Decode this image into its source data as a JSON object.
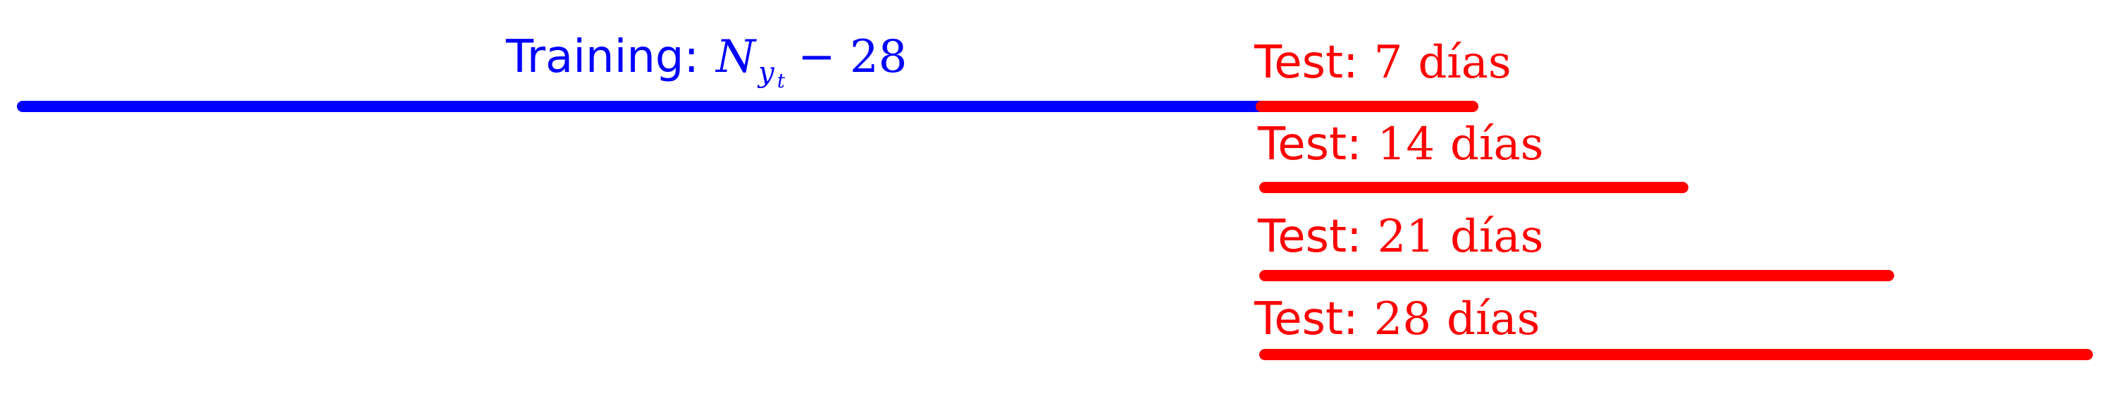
{
  "colors": {
    "training": "#0000ff",
    "test": "#ff0000",
    "background": "#ffffff"
  },
  "training": {
    "label_prefix": "Training:",
    "math_var": "N",
    "math_sub": "y",
    "math_subsub": "t",
    "math_rest": "− 28"
  },
  "tests": [
    {
      "label_prefix": "Test:",
      "value": "7",
      "unit": "días"
    },
    {
      "label_prefix": "Test:",
      "value": "14",
      "unit": "días"
    },
    {
      "label_prefix": "Test:",
      "value": "21",
      "unit": "días"
    },
    {
      "label_prefix": "Test:",
      "value": "28",
      "unit": "días"
    }
  ]
}
